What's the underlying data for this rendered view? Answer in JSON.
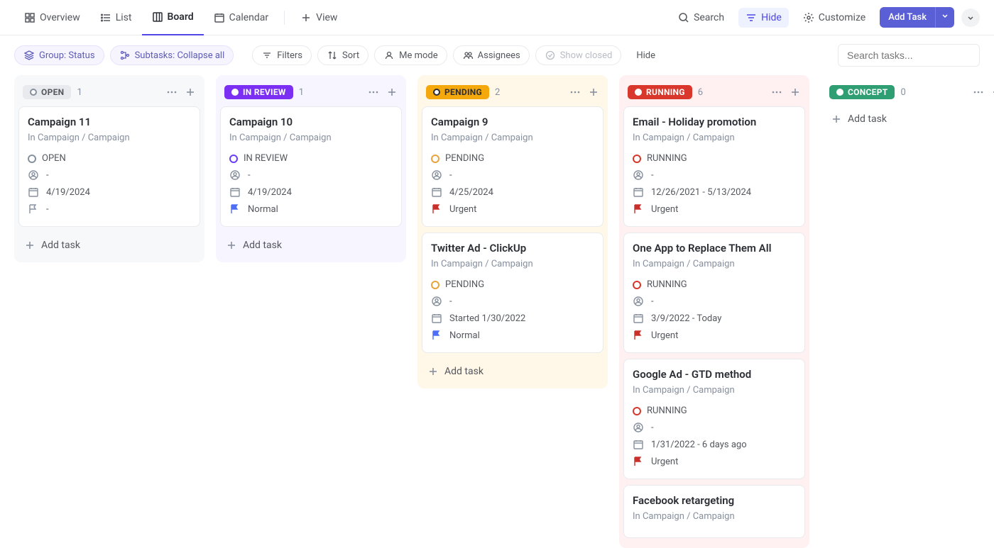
{
  "topnav": {
    "tabs": [
      {
        "id": "overview",
        "label": "Overview"
      },
      {
        "id": "list",
        "label": "List"
      },
      {
        "id": "board",
        "label": "Board"
      },
      {
        "id": "calendar",
        "label": "Calendar"
      },
      {
        "id": "view",
        "label": "View"
      }
    ],
    "active_tab": "board",
    "search_label": "Search",
    "hide_label": "Hide",
    "customize_label": "Customize",
    "add_task_label": "Add Task"
  },
  "toolbar": {
    "group_chip": "Group: Status",
    "subtasks_chip": "Subtasks: Collapse all",
    "filters": "Filters",
    "sort": "Sort",
    "me_mode": "Me mode",
    "assignees": "Assignees",
    "show_closed": "Show closed",
    "hide": "Hide",
    "search_placeholder": "Search tasks..."
  },
  "board": {
    "add_task_label": "Add task",
    "columns": [
      {
        "id": "open",
        "label": "OPEN",
        "count": 1,
        "pill_bg": "#e8eaed",
        "pill_fg": "#54575d",
        "dot_color": "#87909e",
        "col_class": "col-open",
        "cards": [
          {
            "title": "Campaign 11",
            "sub": "In Campaign / Campaign",
            "status": "OPEN",
            "status_color": "#87909e",
            "assignee": "-",
            "date": "4/19/2024",
            "date_class": "date-red",
            "flag": "-",
            "flag_class": ""
          }
        ]
      },
      {
        "id": "review",
        "label": "IN REVIEW",
        "count": 1,
        "pill_bg": "#7b2ff2",
        "pill_fg": "#ffffff",
        "dot_color": "#ffffff",
        "col_class": "col-review",
        "cards": [
          {
            "title": "Campaign 10",
            "sub": "In Campaign / Campaign",
            "status": "IN REVIEW",
            "status_color": "#6c3ef5",
            "assignee": "-",
            "date": "4/19/2024",
            "date_class": "date-red",
            "flag": "Normal",
            "flag_class": "flag-normal"
          }
        ]
      },
      {
        "id": "pending",
        "label": "PENDING",
        "count": 2,
        "pill_bg": "#f5a80b",
        "pill_fg": "#2a2e34",
        "dot_color": "#2a2e34",
        "col_class": "col-pending",
        "cards": [
          {
            "title": "Campaign 9",
            "sub": "In Campaign / Campaign",
            "status": "PENDING",
            "status_color": "#e8a33d",
            "assignee": "-",
            "date": "4/25/2024",
            "date_class": "date-red",
            "flag": "Urgent",
            "flag_class": "flag-urgent"
          },
          {
            "title": "Twitter Ad - ClickUp",
            "sub": "In Campaign / Campaign",
            "status": "PENDING",
            "status_color": "#e8a33d",
            "assignee": "-",
            "date": "Started 1/30/2022",
            "date_class": "",
            "flag": "Normal",
            "flag_class": "flag-normal"
          }
        ]
      },
      {
        "id": "running",
        "label": "RUNNING",
        "count": 6,
        "pill_bg": "#d9372c",
        "pill_fg": "#ffffff",
        "dot_color": "#ffffff",
        "col_class": "col-running",
        "cards": [
          {
            "title": "Email - Holiday promotion",
            "sub": "In Campaign / Campaign",
            "status": "RUNNING",
            "status_color": "#d9372c",
            "assignee": "-",
            "date": "12/26/2021 - 5/13/2024",
            "date_class": "date-red",
            "flag": "Urgent",
            "flag_class": "flag-urgent"
          },
          {
            "title": "One App to Replace Them All",
            "sub": "In Campaign / Campaign",
            "status": "RUNNING",
            "status_color": "#d9372c",
            "assignee": "-",
            "date": "3/9/2022 - Today",
            "date_class": "date-amber",
            "flag": "Urgent",
            "flag_class": "flag-urgent"
          },
          {
            "title": "Google Ad - GTD method",
            "sub": "In Campaign / Campaign",
            "status": "RUNNING",
            "status_color": "#d9372c",
            "assignee": "-",
            "date": "1/31/2022 - 6 days ago",
            "date_class": "date-red",
            "flag": "Urgent",
            "flag_class": "flag-urgent"
          },
          {
            "title": "Facebook retargeting",
            "sub": "In Campaign / Campaign",
            "status": "",
            "status_color": "",
            "assignee": "",
            "date": "",
            "date_class": "",
            "flag": "",
            "flag_class": "",
            "truncated": true
          }
        ]
      },
      {
        "id": "concept",
        "label": "CONCEPT",
        "count": 0,
        "pill_bg": "#2f9e73",
        "pill_fg": "#ffffff",
        "dot_color": "#ffffff",
        "col_class": "col-concept",
        "cards": []
      }
    ]
  }
}
